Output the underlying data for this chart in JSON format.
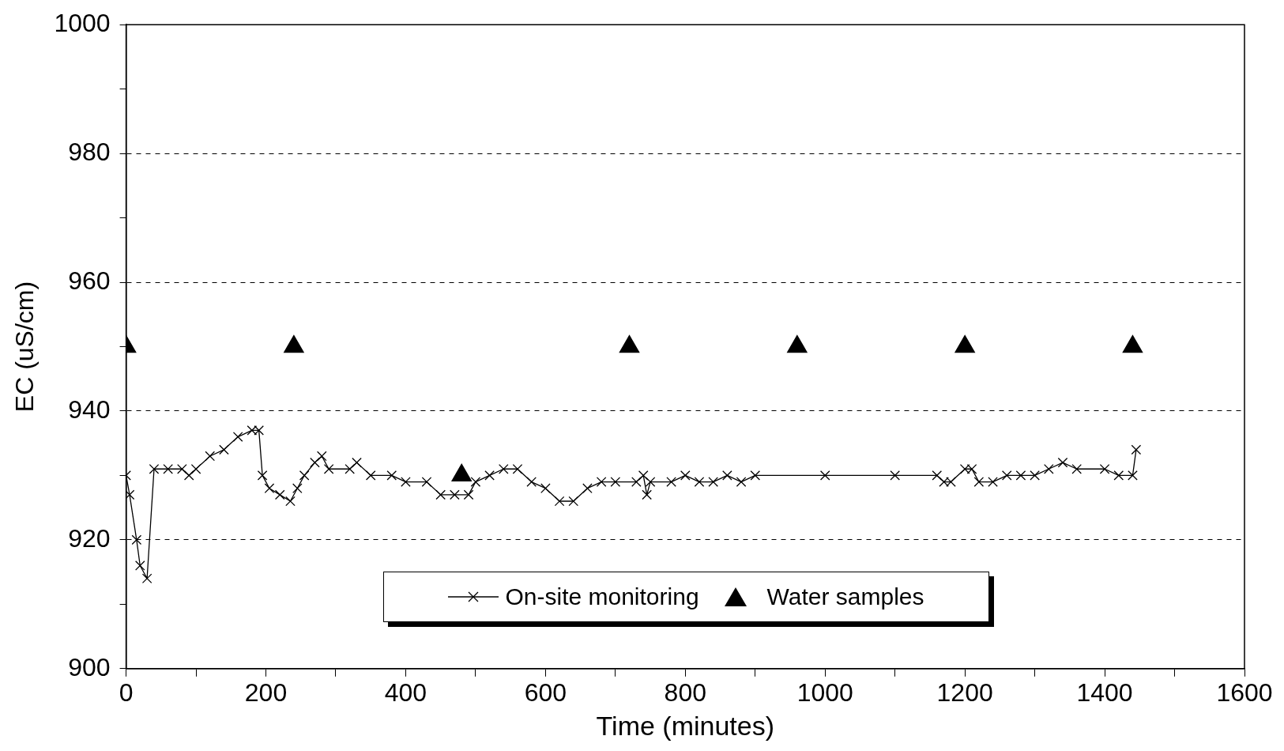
{
  "chart_data": {
    "type": "line",
    "xlabel": "Time (minutes)",
    "ylabel": "EC (uS/cm)",
    "xlim": [
      0,
      1600
    ],
    "ylim": [
      900,
      1000
    ],
    "xticks": [
      0,
      {
        "value": 100,
        "label": null
      },
      200,
      {
        "value": 300,
        "label": null
      },
      400,
      {
        "value": 500,
        "label": null
      },
      600,
      {
        "value": 700,
        "label": null
      },
      800,
      {
        "value": 900,
        "label": null
      },
      1000,
      {
        "value": 1100,
        "label": null
      },
      1200,
      {
        "value": 1300,
        "label": null
      },
      1400,
      {
        "value": 1500,
        "label": null
      },
      1600
    ],
    "yticks": [
      900,
      {
        "value": 910,
        "label": null
      },
      920,
      {
        "value": 930,
        "label": null
      },
      940,
      {
        "value": 950,
        "label": null
      },
      960,
      {
        "value": 970,
        "label": null
      },
      980,
      {
        "value": 990,
        "label": null
      },
      1000
    ],
    "grid": "y",
    "legend": "bottom",
    "series": [
      {
        "name": "On-site monitoring",
        "marker": "cross",
        "line_style": "solid",
        "color": "#000000",
        "x": [
          0,
          5,
          15,
          20,
          30,
          40,
          60,
          80,
          90,
          100,
          120,
          140,
          160,
          180,
          190,
          195,
          205,
          220,
          235,
          245,
          255,
          270,
          280,
          290,
          320,
          330,
          350,
          380,
          400,
          430,
          450,
          470,
          490,
          500,
          520,
          540,
          560,
          580,
          600,
          620,
          640,
          660,
          680,
          700,
          730,
          740,
          745,
          750,
          780,
          800,
          820,
          840,
          860,
          880,
          900,
          1000,
          1100,
          1160,
          1170,
          1180,
          1200,
          1210,
          1220,
          1240,
          1260,
          1280,
          1300,
          1320,
          1340,
          1360,
          1400,
          1420,
          1440,
          1445
        ],
        "values": [
          930,
          927,
          920,
          916,
          914,
          931,
          931,
          931,
          930,
          931,
          933,
          934,
          936,
          937,
          937,
          930,
          928,
          927,
          926,
          928,
          930,
          932,
          933,
          931,
          931,
          932,
          930,
          930,
          929,
          929,
          927,
          927,
          927,
          929,
          930,
          931,
          931,
          929,
          928,
          926,
          926,
          928,
          929,
          929,
          929,
          930,
          927,
          929,
          929,
          930,
          929,
          929,
          930,
          929,
          930,
          930,
          930,
          930,
          929,
          929,
          931,
          931,
          929,
          929,
          930,
          930,
          930,
          931,
          932,
          931,
          931,
          930,
          930,
          934
        ]
      },
      {
        "name": "Water samples",
        "type": "scatter",
        "marker": "triangle",
        "color": "#000000",
        "x": [
          0,
          240,
          480,
          720,
          960,
          1200,
          1440
        ],
        "values": [
          950,
          950,
          930,
          950,
          950,
          950,
          950
        ]
      }
    ]
  }
}
